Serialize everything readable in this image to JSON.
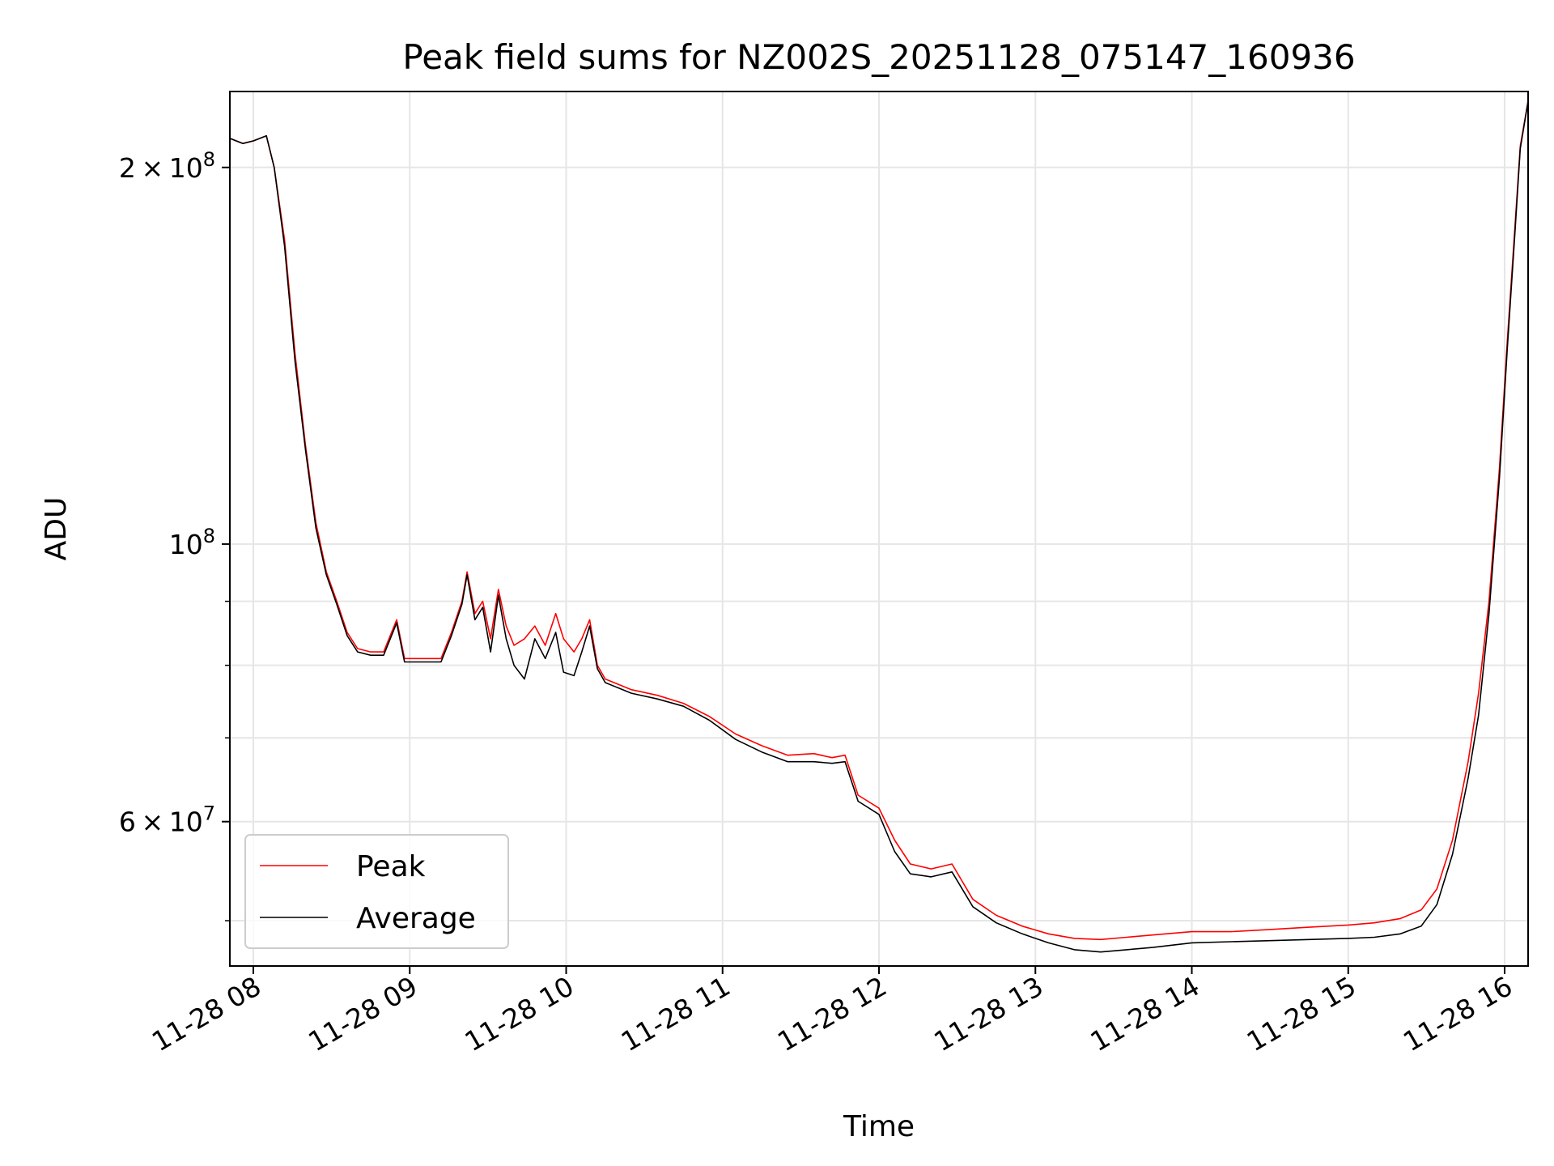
{
  "chart_data": {
    "type": "line",
    "title": "Peak field sums for NZ002S_20251128_075147_160936",
    "xlabel": "Time",
    "ylabel": "ADU",
    "yscale": "log",
    "xlim": [
      "2025-11-28 07:51",
      "2025-11-28 16:09"
    ],
    "ylim": [
      46000000,
      230000000
    ],
    "grid": true,
    "legend_position": "lower-left",
    "x_ticks": [
      {
        "value": "2025-11-28 08:00",
        "label": "11-28 08"
      },
      {
        "value": "2025-11-28 09:00",
        "label": "11-28 09"
      },
      {
        "value": "2025-11-28 10:00",
        "label": "11-28 10"
      },
      {
        "value": "2025-11-28 11:00",
        "label": "11-28 11"
      },
      {
        "value": "2025-11-28 12:00",
        "label": "11-28 12"
      },
      {
        "value": "2025-11-28 13:00",
        "label": "11-28 13"
      },
      {
        "value": "2025-11-28 14:00",
        "label": "11-28 14"
      },
      {
        "value": "2025-11-28 15:00",
        "label": "11-28 15"
      },
      {
        "value": "2025-11-28 16:00",
        "label": "11-28 16"
      }
    ],
    "y_ticks": [
      {
        "value": 200000000,
        "mantissa": "2",
        "times": "×",
        "base": "10",
        "exp": "8"
      },
      {
        "value": 100000000,
        "mantissa": "",
        "times": "",
        "base": "10",
        "exp": "8"
      },
      {
        "value": 60000000,
        "mantissa": "6",
        "times": "×",
        "base": "10",
        "exp": "7"
      }
    ],
    "y_minor_ticks": [
      50000000,
      70000000,
      80000000,
      90000000
    ],
    "series": [
      {
        "name": "Peak",
        "color": "#ff0000",
        "points": [
          [
            "07:51",
            211000000
          ],
          [
            "07:56",
            209000000
          ],
          [
            "08:00",
            210000000
          ],
          [
            "08:05",
            212000000
          ],
          [
            "08:08",
            200000000
          ],
          [
            "08:12",
            175000000
          ],
          [
            "08:16",
            142000000
          ],
          [
            "08:20",
            120000000
          ],
          [
            "08:24",
            104000000
          ],
          [
            "08:28",
            95000000
          ],
          [
            "08:32",
            90000000
          ],
          [
            "08:36",
            85000000
          ],
          [
            "08:40",
            82500000
          ],
          [
            "08:45",
            82000000
          ],
          [
            "08:50",
            82000000
          ],
          [
            "08:55",
            87000000
          ],
          [
            "08:58",
            81000000
          ],
          [
            "09:05",
            81000000
          ],
          [
            "09:12",
            81000000
          ],
          [
            "09:16",
            85000000
          ],
          [
            "09:20",
            90000000
          ],
          [
            "09:22",
            95000000
          ],
          [
            "09:25",
            88000000
          ],
          [
            "09:28",
            90000000
          ],
          [
            "09:31",
            84000000
          ],
          [
            "09:34",
            92000000
          ],
          [
            "09:37",
            86000000
          ],
          [
            "09:40",
            83000000
          ],
          [
            "09:44",
            84000000
          ],
          [
            "09:48",
            86000000
          ],
          [
            "09:52",
            83000000
          ],
          [
            "09:56",
            88000000
          ],
          [
            "09:59",
            84000000
          ],
          [
            "10:03",
            82000000
          ],
          [
            "10:06",
            84000000
          ],
          [
            "10:09",
            87000000
          ],
          [
            "10:12",
            80000000
          ],
          [
            "10:15",
            78000000
          ],
          [
            "10:25",
            76500000
          ],
          [
            "10:35",
            75700000
          ],
          [
            "10:45",
            74600000
          ],
          [
            "10:55",
            72800000
          ],
          [
            "11:05",
            70500000
          ],
          [
            "11:15",
            69000000
          ],
          [
            "11:25",
            67800000
          ],
          [
            "11:35",
            68000000
          ],
          [
            "11:42",
            67500000
          ],
          [
            "11:47",
            67800000
          ],
          [
            "11:52",
            63000000
          ],
          [
            "12:00",
            61500000
          ],
          [
            "12:06",
            58000000
          ],
          [
            "12:12",
            55500000
          ],
          [
            "12:20",
            55000000
          ],
          [
            "12:28",
            55500000
          ],
          [
            "12:36",
            52000000
          ],
          [
            "12:45",
            50500000
          ],
          [
            "12:55",
            49500000
          ],
          [
            "13:05",
            48800000
          ],
          [
            "13:15",
            48400000
          ],
          [
            "13:25",
            48300000
          ],
          [
            "13:35",
            48500000
          ],
          [
            "13:45",
            48700000
          ],
          [
            "14:00",
            49000000
          ],
          [
            "14:15",
            49000000
          ],
          [
            "14:30",
            49200000
          ],
          [
            "14:45",
            49400000
          ],
          [
            "15:00",
            49600000
          ],
          [
            "15:10",
            49800000
          ],
          [
            "15:20",
            50200000
          ],
          [
            "15:28",
            51000000
          ],
          [
            "15:34",
            53000000
          ],
          [
            "15:40",
            58000000
          ],
          [
            "15:46",
            67000000
          ],
          [
            "15:50",
            76000000
          ],
          [
            "15:54",
            90000000
          ],
          [
            "15:58",
            115000000
          ],
          [
            "16:01",
            145000000
          ],
          [
            "16:04",
            180000000
          ],
          [
            "16:06",
            208000000
          ],
          [
            "16:09",
            226000000
          ]
        ]
      },
      {
        "name": "Average",
        "color": "#000000",
        "points": [
          [
            "07:51",
            211000000
          ],
          [
            "07:56",
            209000000
          ],
          [
            "08:00",
            210000000
          ],
          [
            "08:05",
            212000000
          ],
          [
            "08:08",
            200000000
          ],
          [
            "08:12",
            173000000
          ],
          [
            "08:16",
            140000000
          ],
          [
            "08:20",
            119000000
          ],
          [
            "08:24",
            103000000
          ],
          [
            "08:28",
            94500000
          ],
          [
            "08:32",
            89500000
          ],
          [
            "08:36",
            84500000
          ],
          [
            "08:40",
            82000000
          ],
          [
            "08:45",
            81500000
          ],
          [
            "08:50",
            81500000
          ],
          [
            "08:55",
            86500000
          ],
          [
            "08:58",
            80500000
          ],
          [
            "09:05",
            80500000
          ],
          [
            "09:12",
            80500000
          ],
          [
            "09:16",
            84500000
          ],
          [
            "09:20",
            89500000
          ],
          [
            "09:22",
            94500000
          ],
          [
            "09:25",
            87000000
          ],
          [
            "09:28",
            89000000
          ],
          [
            "09:31",
            82000000
          ],
          [
            "09:34",
            91000000
          ],
          [
            "09:37",
            84000000
          ],
          [
            "09:40",
            80000000
          ],
          [
            "09:44",
            78000000
          ],
          [
            "09:48",
            84000000
          ],
          [
            "09:52",
            81000000
          ],
          [
            "09:56",
            85000000
          ],
          [
            "09:59",
            79000000
          ],
          [
            "10:03",
            78500000
          ],
          [
            "10:06",
            82000000
          ],
          [
            "10:09",
            86000000
          ],
          [
            "10:12",
            79500000
          ],
          [
            "10:15",
            77500000
          ],
          [
            "10:25",
            76000000
          ],
          [
            "10:35",
            75200000
          ],
          [
            "10:45",
            74200000
          ],
          [
            "10:55",
            72300000
          ],
          [
            "11:05",
            69800000
          ],
          [
            "11:15",
            68200000
          ],
          [
            "11:25",
            67000000
          ],
          [
            "11:35",
            67000000
          ],
          [
            "11:42",
            66800000
          ],
          [
            "11:47",
            67000000
          ],
          [
            "11:52",
            62300000
          ],
          [
            "12:00",
            60800000
          ],
          [
            "12:06",
            56800000
          ],
          [
            "12:12",
            54500000
          ],
          [
            "12:20",
            54200000
          ],
          [
            "12:28",
            54700000
          ],
          [
            "12:36",
            51300000
          ],
          [
            "12:45",
            49800000
          ],
          [
            "12:55",
            48800000
          ],
          [
            "13:05",
            48000000
          ],
          [
            "13:15",
            47400000
          ],
          [
            "13:25",
            47200000
          ],
          [
            "13:35",
            47400000
          ],
          [
            "13:45",
            47600000
          ],
          [
            "14:00",
            48000000
          ],
          [
            "14:15",
            48100000
          ],
          [
            "14:30",
            48200000
          ],
          [
            "14:45",
            48300000
          ],
          [
            "15:00",
            48400000
          ],
          [
            "15:10",
            48500000
          ],
          [
            "15:20",
            48800000
          ],
          [
            "15:28",
            49500000
          ],
          [
            "15:34",
            51500000
          ],
          [
            "15:40",
            56500000
          ],
          [
            "15:46",
            65000000
          ],
          [
            "15:50",
            73000000
          ],
          [
            "15:54",
            88000000
          ],
          [
            "15:58",
            113000000
          ],
          [
            "16:01",
            143000000
          ],
          [
            "16:04",
            178000000
          ],
          [
            "16:06",
            207000000
          ],
          [
            "16:09",
            226000000
          ]
        ]
      }
    ]
  }
}
